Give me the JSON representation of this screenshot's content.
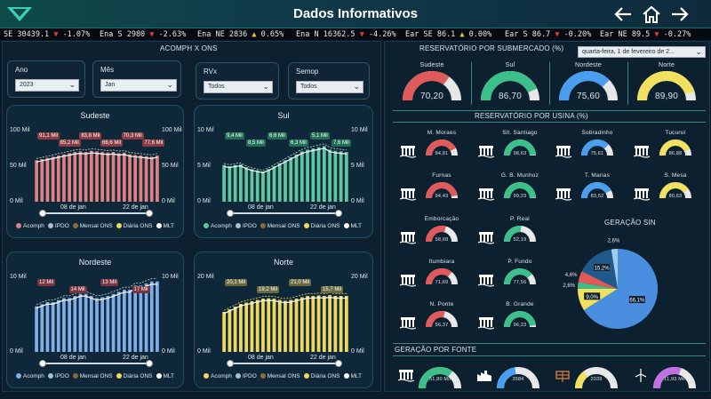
{
  "header": {
    "title": "Dados Informativos",
    "back_icon": "arrow-left-icon",
    "home_icon": "home-icon",
    "forward_icon": "arrow-right-icon"
  },
  "ticker": [
    {
      "label": "SE 30439.1",
      "arrow": "▼",
      "change": "-1.07%"
    },
    {
      "label": "Ena S 2980",
      "arrow": "▼",
      "change": "-2.63%"
    },
    {
      "label": "Ena NE 2836",
      "arrow": "▲",
      "change": "0.65%"
    },
    {
      "label": "Ena N 16362.5",
      "arrow": "▼",
      "change": "-4.26%"
    },
    {
      "label": "Ear SE 86.1",
      "arrow": "▲",
      "change": "0.00%"
    },
    {
      "label": "Ear S 86.7",
      "arrow": "▼",
      "change": "-0.20%"
    },
    {
      "label": "Ear NE 89.5",
      "arrow": "▼",
      "change": "-0.27%"
    }
  ],
  "left": {
    "title": "ACOMPH X ONS",
    "filters": [
      {
        "label": "Ano",
        "value": "2023"
      },
      {
        "label": "Mês",
        "value": "Jan"
      },
      {
        "label": "RVx",
        "value": "Todos"
      },
      {
        "label": "Semop",
        "value": "Todos"
      }
    ],
    "legend": [
      "Acomph",
      "IPDO",
      "Mensal ONS",
      "Diária ONS",
      "MLT"
    ]
  },
  "charts": [
    {
      "name": "Sudeste",
      "color": "#e08080",
      "y_ticks": [
        "100 Mil",
        "50 Mil",
        "0 Mil"
      ],
      "y2_ticks": [
        "100 Mil",
        "50 Mil",
        "0 Mil"
      ],
      "x_ticks": [
        "08 de jan",
        "22 de jan"
      ],
      "tags": [
        "91,1 Mil",
        "85,2 Mil",
        "83,8 Mil",
        "66,6 Mil",
        "70,3 Mil",
        "77,6 Mil"
      ]
    },
    {
      "name": "Sul",
      "color": "#5fc6a0",
      "y_ticks": [
        "10 Mil",
        "5 Mil",
        "0 Mil"
      ],
      "y2_ticks": [
        "10 Mil",
        "5 Mil",
        "0 Mil"
      ],
      "x_ticks": [
        "08 de jan",
        "22 de jan"
      ],
      "tags": [
        "9,4 Mil",
        "8,5 Mil",
        "6,6 Mil",
        "6,3 Mil",
        "5,1 Mil",
        "7,6 Mil"
      ]
    },
    {
      "name": "Nordeste",
      "color": "#80aee8",
      "y_ticks": [
        "10 Mil",
        "0 Mil"
      ],
      "y2_ticks": [
        "10 Mil",
        "0 Mil"
      ],
      "x_ticks": [
        "08 de jan",
        "22 de jan"
      ],
      "tags": [
        "12 Mil",
        "14 Mil",
        "13 Mil",
        "17 Mil"
      ]
    },
    {
      "name": "Norte",
      "color": "#f0d860",
      "y_ticks": [
        "20 Mil",
        "0 Mil"
      ],
      "y2_ticks": [
        "20 Mil",
        "0 Mil"
      ],
      "x_ticks": [
        "08 de jan",
        "22 de jan"
      ],
      "tags": [
        "20,1 Mil",
        "19,2 Mil",
        "21,0 Mil",
        "15,7 Mil"
      ]
    }
  ],
  "right": {
    "title_sub": "RESERVATÓRIO POR SUBMERCADO (%)",
    "date": "quarta-feira, 1 de fevereiro de 2...",
    "submercados": [
      {
        "name": "Sudeste",
        "value": "70,20",
        "pct": 0.702,
        "color": "#e05a5a"
      },
      {
        "name": "Sul",
        "value": "86,70",
        "pct": 0.867,
        "color": "#3cc08a"
      },
      {
        "name": "Nordeste",
        "value": "75,60",
        "pct": 0.756,
        "color": "#4a9ef0"
      },
      {
        "name": "Norte",
        "value": "89,90",
        "pct": 0.899,
        "color": "#f2e060"
      }
    ],
    "title_usina": "RESERVATÓRIO POR USINA (%)",
    "usinas": [
      {
        "name": "M. Moraes",
        "value": "84,81",
        "pct": 0.848,
        "color": "#e05a5a"
      },
      {
        "name": "Slt. Santiago",
        "value": "98,63",
        "pct": 0.986,
        "color": "#3cc08a"
      },
      {
        "name": "Sobradinho",
        "value": "75,61",
        "pct": 0.756,
        "color": "#4a9ef0"
      },
      {
        "name": "Tucuruí",
        "value": "86,88",
        "pct": 0.869,
        "color": "#f2e060"
      },
      {
        "name": "Furnas",
        "value": "94,43",
        "pct": 0.944,
        "color": "#e05a5a"
      },
      {
        "name": "G. B. Munhoz",
        "value": "99,23",
        "pct": 0.992,
        "color": "#3cc08a"
      },
      {
        "name": "T. Marias",
        "value": "83,52",
        "pct": 0.835,
        "color": "#4a9ef0"
      },
      {
        "name": "S. Mesa",
        "value": "80,63",
        "pct": 0.806,
        "color": "#f2e060"
      },
      {
        "name": "Emborcação",
        "value": "58,68",
        "pct": 0.587,
        "color": "#e05a5a"
      },
      {
        "name": "P. Real",
        "value": "52,19",
        "pct": 0.522,
        "color": "#3cc08a"
      },
      {
        "name": "Itumbiara",
        "value": "71,69",
        "pct": 0.717,
        "color": "#e05a5a"
      },
      {
        "name": "P. Fundo",
        "value": "77,56",
        "pct": 0.776,
        "color": "#3cc08a"
      },
      {
        "name": "N. Ponte",
        "value": "56,37",
        "pct": 0.564,
        "color": "#e05a5a"
      },
      {
        "name": "B. Grande",
        "value": "96,23",
        "pct": 0.962,
        "color": "#3cc08a"
      }
    ],
    "title_geracao_sin": "GERAÇÃO SIN",
    "pie": [
      {
        "label": "66,1%",
        "value": 66.1,
        "color": "#4a8ee0"
      },
      {
        "label": "9,0%",
        "value": 9.0,
        "color": "#f2e060"
      },
      {
        "label": "2,6%",
        "value": 2.6,
        "color": "#3cc08a"
      },
      {
        "label": "4,6%",
        "value": 4.6,
        "color": "#e05a5a"
      },
      {
        "label": "15,2%",
        "value": 15.2,
        "color": "#1f5a8a"
      },
      {
        "label": "2,6%",
        "value": 2.6,
        "color": "#9ecbef"
      }
    ],
    "title_fonte": "GERAÇÃO POR FONTE",
    "fontes": [
      {
        "icon": "dam-icon",
        "value": "51,80 Mil",
        "pct": 0.7,
        "color": "#3cc08a"
      },
      {
        "icon": "factory-icon",
        "value": "3584",
        "pct": 0.45,
        "color": "#4a9ef0"
      },
      {
        "icon": "solar-panel-icon",
        "value": "2039",
        "pct": 0.3,
        "color": "#f2e060"
      },
      {
        "icon": "wind-turbine-icon",
        "value": "11,93 Mil",
        "pct": 0.6,
        "color": "#c070e0"
      }
    ]
  }
}
